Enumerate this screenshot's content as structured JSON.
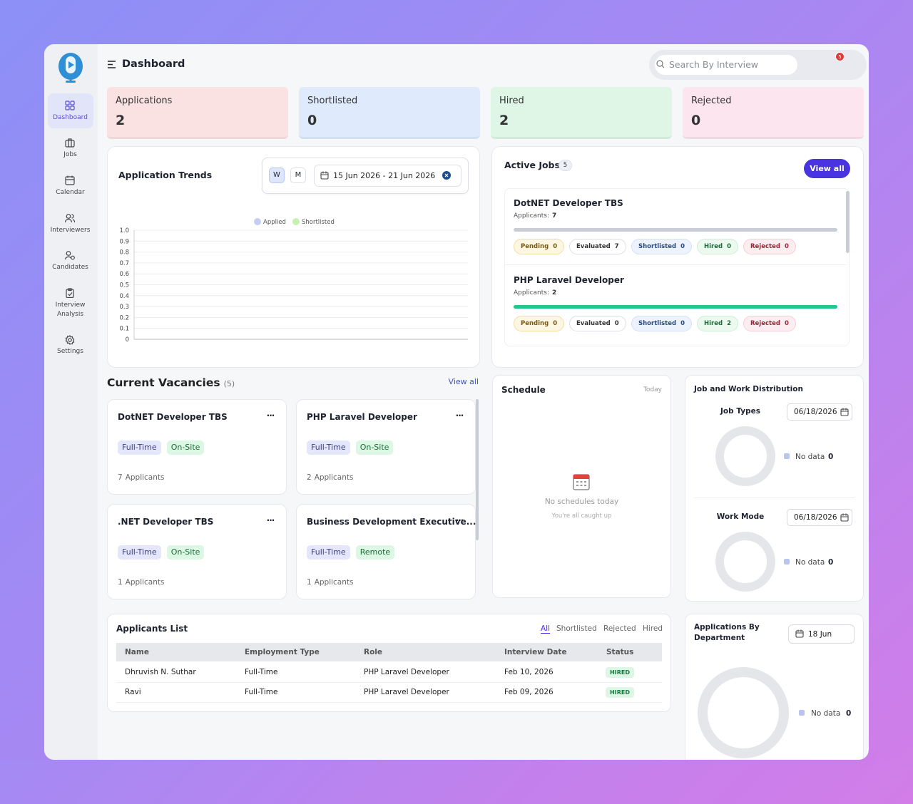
{
  "header": {
    "title": "Dashboard",
    "search_placeholder": "Search By Interview",
    "notifications": 5
  },
  "sidebar": [
    {
      "label": "Dashboard"
    },
    {
      "label": "Jobs"
    },
    {
      "label": "Calendar"
    },
    {
      "label": "Interviewers"
    },
    {
      "label": "Candidates"
    },
    {
      "label": "Interview Analysis"
    },
    {
      "label": "Settings"
    }
  ],
  "stats": [
    {
      "label": "Applications",
      "value": 2
    },
    {
      "label": "Shortlisted",
      "value": 0
    },
    {
      "label": "Hired",
      "value": 2
    },
    {
      "label": "Rejected",
      "value": 0
    }
  ],
  "trends": {
    "title": "Application Trends",
    "periods": [
      "W",
      "M"
    ],
    "date_range": "15 Jun 2026 - 21 Jun 2026",
    "legend": [
      {
        "name": "Applied",
        "color": "#c5cdf5"
      },
      {
        "name": "Shortlisted",
        "color": "#c8f0b2"
      }
    ],
    "ylim": [
      0,
      1
    ],
    "yticks": [
      0,
      0.1,
      0.2,
      0.3,
      0.4,
      0.5,
      0.6,
      0.7,
      0.8,
      0.9,
      {
        "value": 1,
        "label": "1.0"
      }
    ]
  },
  "active_jobs": {
    "title": "Active Jobs",
    "count": 5,
    "button": "View all",
    "jobs": [
      {
        "title": "DotNET Developer TBS",
        "applicants_label": "Applicants:",
        "applicants": 7,
        "statuses": [
          {
            "label": "Pending",
            "value": 0
          },
          {
            "label": "Evaluated",
            "value": 7
          },
          {
            "label": "Shortlisted",
            "value": 0
          },
          {
            "label": "Hired",
            "value": 0
          },
          {
            "label": "Rejected",
            "value": 0
          }
        ]
      },
      {
        "title": "PHP Laravel Developer",
        "applicants_label": "Applicants:",
        "applicants": 2,
        "statuses": [
          {
            "label": "Pending",
            "value": 0
          },
          {
            "label": "Evaluated",
            "value": 0
          },
          {
            "label": "Shortlisted",
            "value": 0
          },
          {
            "label": "Hired",
            "value": 2
          },
          {
            "label": "Rejected",
            "value": 0
          }
        ]
      }
    ]
  },
  "vacancies": {
    "title": "Current Vacancies",
    "count": "(5)",
    "link": "View all",
    "cards": [
      {
        "title": "DotNET Developer TBS",
        "tags": [
          "Full-Time",
          "On-Site"
        ],
        "applicants": 7,
        "applicants_label": "Applicants"
      },
      {
        "title": "PHP Laravel Developer",
        "tags": [
          "Full-Time",
          "On-Site"
        ],
        "applicants": 2,
        "applicants_label": "Applicants"
      },
      {
        "title": ".NET Developer TBS",
        "tags": [
          "Full-Time",
          "On-Site"
        ],
        "applicants": 1,
        "applicants_label": "Applicants"
      },
      {
        "title": "Business Development Executive...",
        "tags": [
          "Full-Time",
          "Remote"
        ],
        "applicants": 1,
        "applicants_label": "Applicants"
      }
    ]
  },
  "schedule": {
    "title": "Schedule",
    "period": "Today",
    "empty": "No schedules today",
    "note": "You're all caught up"
  },
  "distribution": {
    "title": "Job and Work Distribution",
    "sections": [
      {
        "title": "Job Types",
        "date": "06/18/2026",
        "legend": "No data",
        "value": 0
      },
      {
        "title": "Work Mode",
        "date": "06/18/2026",
        "legend": "No data",
        "value": 0
      }
    ]
  },
  "applicants": {
    "title": "Applicants List",
    "tabs": [
      "All",
      "Shortlisted",
      "Rejected",
      "Hired"
    ],
    "columns": [
      "Name",
      "Employment Type",
      "Role",
      "Interview Date",
      "Status"
    ],
    "rows": [
      [
        "Dhruvish N. Suthar",
        "Full-Time",
        "PHP Laravel Developer",
        "Feb 10, 2026",
        "HIRED"
      ],
      [
        "Ravi",
        "Full-Time",
        "PHP Laravel Developer",
        "Feb 09, 2026",
        "HIRED"
      ]
    ]
  },
  "department": {
    "title": "Applications By Department",
    "date": "18 Jun",
    "legend": "No data",
    "value": 0
  }
}
